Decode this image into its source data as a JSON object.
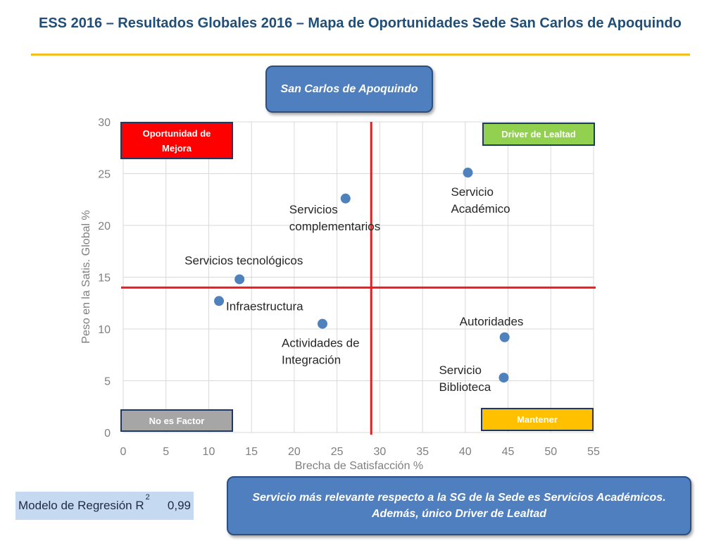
{
  "header": {
    "title": "ESS 2016 – Resultados Globales 2016 – Mapa de Oportunidades Sede San Carlos de Apoquindo"
  },
  "callout_top": "San Carlos de Apoquindo",
  "callout_bottom": {
    "line1": "Servicio más relevante respecto a la SG de la Sede es Servicios Académicos.",
    "line2": "Además, único Driver de Lealtad"
  },
  "model": {
    "label": "Modelo de Regresión R",
    "superscript": "2",
    "value": "0,99"
  },
  "quadrants": {
    "top_left": {
      "label_line1": "Oportunidad de",
      "label_line2": "Mejora",
      "color": "#ff0000"
    },
    "top_right": {
      "label": "Driver de Lealtad",
      "color": "#92d050"
    },
    "bottom_left": {
      "label": "No es Factor",
      "color": "#a6a6a6"
    },
    "bottom_right": {
      "label": "Mantener",
      "color": "#ffc000"
    }
  },
  "chart_data": {
    "type": "scatter",
    "xlabel": "Brecha de Satisfacción %",
    "ylabel": "Peso en la Satis. Global %",
    "xlim": [
      0,
      55
    ],
    "ylim": [
      0,
      30
    ],
    "xticks": [
      0,
      5,
      10,
      15,
      20,
      25,
      30,
      35,
      40,
      45,
      50,
      55
    ],
    "yticks": [
      0,
      5,
      10,
      15,
      20,
      25,
      30
    ],
    "grid": true,
    "reference_lines": {
      "x": 29,
      "y": 14
    },
    "point_color": "#4f81bd",
    "line_color": "#e02020",
    "points": [
      {
        "name": "Servicio Académico",
        "label_lines": [
          "Servicio",
          "Académico"
        ],
        "x": 40.3,
        "y": 25.1
      },
      {
        "name": "Servicios complementarios",
        "label_lines": [
          "Servicios",
          "complementarios"
        ],
        "x": 26.0,
        "y": 22.6
      },
      {
        "name": "Servicios tecnológicos",
        "label_lines": [
          "Servicios tecnológicos"
        ],
        "x": 13.6,
        "y": 14.8
      },
      {
        "name": "Infraestructura",
        "label_lines": [
          "Infraestructura"
        ],
        "x": 11.2,
        "y": 12.7
      },
      {
        "name": "Actividades de Integración",
        "label_lines": [
          "Actividades de",
          "Integración"
        ],
        "x": 23.3,
        "y": 10.5
      },
      {
        "name": "Autoridades",
        "label_lines": [
          "Autoridades"
        ],
        "x": 44.6,
        "y": 9.2
      },
      {
        "name": "Servicio Biblioteca",
        "label_lines": [
          "Servicio",
          "Biblioteca"
        ],
        "x": 44.5,
        "y": 5.3
      }
    ]
  }
}
